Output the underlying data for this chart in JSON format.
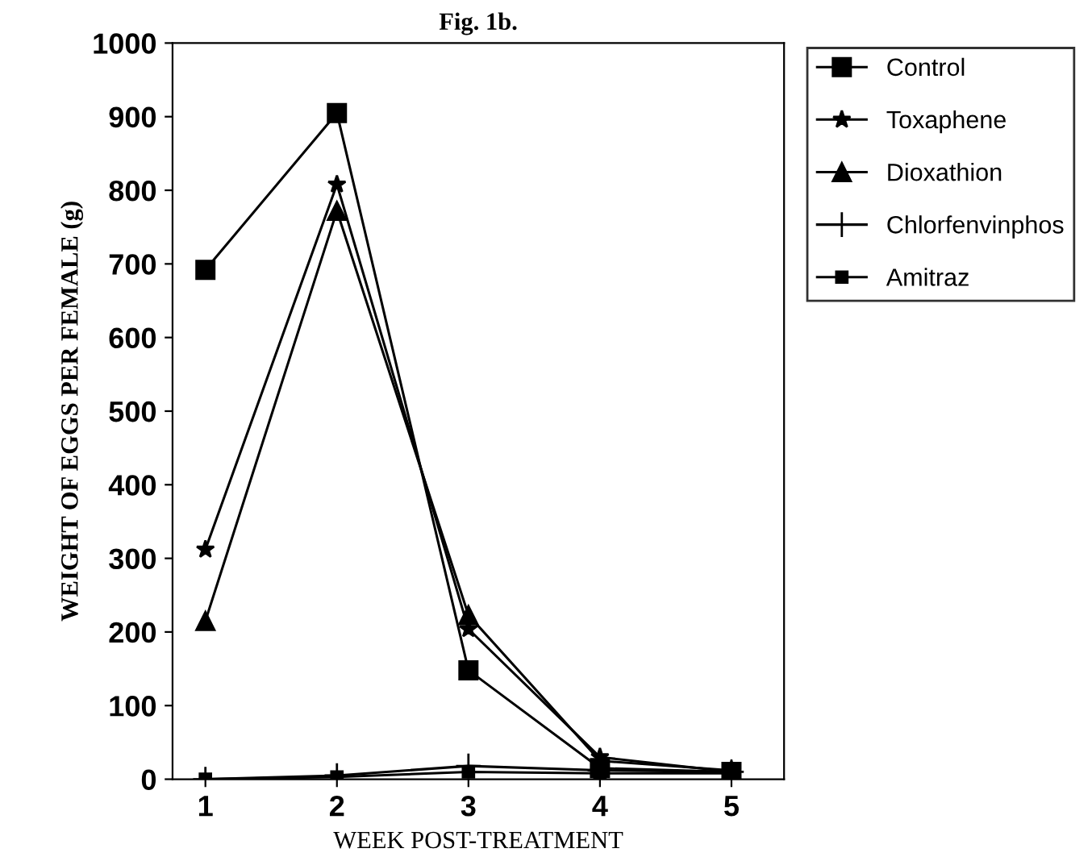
{
  "chart_data": {
    "type": "line",
    "title": "Fig. 1b.",
    "xlabel": "WEEK POST-TREATMENT",
    "ylabel": "WEIGHT OF EGGS PER FEMALE (g)",
    "x": [
      1,
      2,
      3,
      4,
      5
    ],
    "xlim": [
      0.75,
      5.4
    ],
    "xticks": [
      1,
      2,
      3,
      4,
      5
    ],
    "ylim": [
      0,
      1000
    ],
    "yticks": [
      0,
      100,
      200,
      300,
      400,
      500,
      600,
      700,
      800,
      900,
      1000
    ],
    "legend": "right",
    "grid": false,
    "line_style": "solid",
    "series": [
      {
        "name": "Control",
        "color": "#000000",
        "marker": "square",
        "values": [
          692,
          905,
          148,
          15,
          10
        ]
      },
      {
        "name": "Toxaphene",
        "color": "#000000",
        "marker": "star",
        "values": [
          312,
          808,
          204,
          30,
          10
        ]
      },
      {
        "name": "Dioxathion",
        "color": "#000000",
        "marker": "triangle",
        "values": [
          215,
          772,
          223,
          25,
          12
        ]
      },
      {
        "name": "Chlorfenvinphos",
        "color": "#000000",
        "marker": "cross",
        "values": [
          0,
          5,
          18,
          12,
          10
        ]
      },
      {
        "name": "Amitraz",
        "color": "#000000",
        "marker": "square",
        "values": [
          0,
          3,
          10,
          8,
          8
        ]
      }
    ]
  }
}
